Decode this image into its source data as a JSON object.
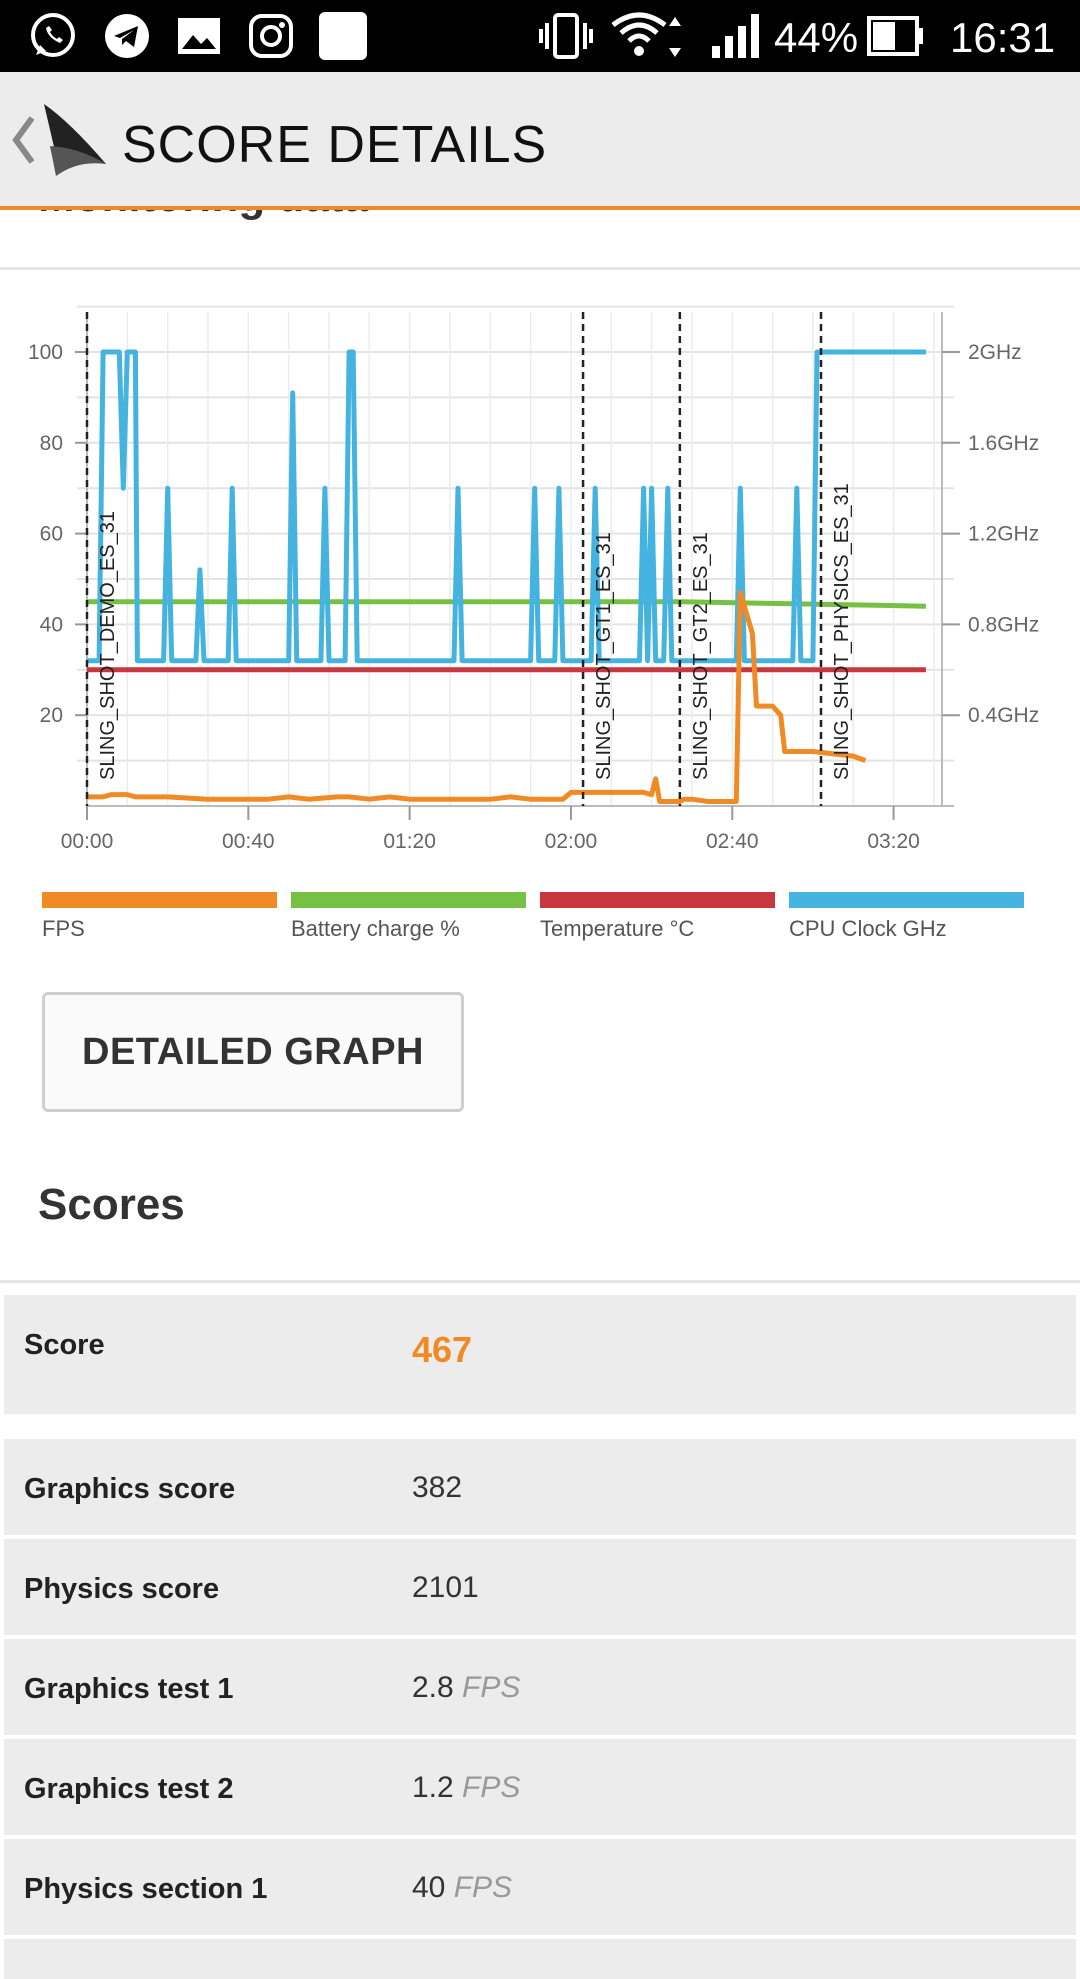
{
  "status_bar": {
    "battery_percent": "44%",
    "time": "16:31",
    "icons": [
      "whatsapp-icon",
      "telegram-icon",
      "gallery-icon",
      "instagram-icon",
      "app-icon",
      "vibrate-icon",
      "wifi-icon",
      "signal-icon",
      "battery-icon"
    ]
  },
  "app_bar": {
    "title": "SCORE DETAILS",
    "back_icon": "back-chevron-icon",
    "logo_icon": "3dmark-logo-icon"
  },
  "monitoring": {
    "header": "Monitoring data"
  },
  "chart_data": {
    "type": "line",
    "x_ticks": [
      "00:00",
      "00:40",
      "01:20",
      "02:00",
      "02:40",
      "03:20"
    ],
    "x_range_seconds": [
      0,
      212
    ],
    "y_left_ticks": [
      20,
      40,
      60,
      80,
      100
    ],
    "y_left_range": [
      0,
      100
    ],
    "y_right_ticks": [
      "0.4GHz",
      "0.8GHz",
      "1.2GHz",
      "1.6GHz",
      "2GHz"
    ],
    "y_right_range_ghz": [
      0,
      2
    ],
    "markers": [
      {
        "t": 0,
        "label": "SLING_SHOT_DEMO_ES_31"
      },
      {
        "t": 123,
        "label": "SLING_SHOT_GT1_ES_31"
      },
      {
        "t": 147,
        "label": "SLING_SHOT_GT2_ES_31"
      },
      {
        "t": 182,
        "label": "SLING_SHOT_PHYSICS_ES_31"
      }
    ],
    "series": [
      {
        "name": "FPS",
        "color": "#f08a24",
        "points": [
          [
            0,
            2
          ],
          [
            4,
            2
          ],
          [
            6,
            2.5
          ],
          [
            10,
            2.5
          ],
          [
            12,
            2
          ],
          [
            20,
            2
          ],
          [
            30,
            1.5
          ],
          [
            35,
            1.5
          ],
          [
            45,
            1.5
          ],
          [
            50,
            2
          ],
          [
            55,
            1.5
          ],
          [
            62,
            2
          ],
          [
            65,
            2
          ],
          [
            70,
            1.5
          ],
          [
            75,
            2
          ],
          [
            80,
            1.5
          ],
          [
            90,
            1.5
          ],
          [
            100,
            1.5
          ],
          [
            105,
            2
          ],
          [
            110,
            1.5
          ],
          [
            118,
            1.5
          ],
          [
            120,
            3
          ],
          [
            130,
            3
          ],
          [
            138,
            3
          ],
          [
            140,
            2.5
          ],
          [
            141,
            6
          ],
          [
            142,
            1
          ],
          [
            147,
            1
          ],
          [
            148,
            1.5
          ],
          [
            150,
            1.5
          ],
          [
            154,
            1
          ],
          [
            161,
            1
          ],
          [
            162,
            47
          ],
          [
            165,
            38
          ],
          [
            166,
            22
          ],
          [
            170,
            22
          ],
          [
            172,
            20
          ],
          [
            173,
            12
          ],
          [
            180,
            12
          ],
          [
            190,
            11
          ],
          [
            193,
            10
          ]
        ]
      },
      {
        "name": "Battery charge %",
        "color": "#76c043",
        "points": [
          [
            0,
            45
          ],
          [
            147,
            45
          ],
          [
            208,
            44
          ]
        ]
      },
      {
        "name": "Temperature °C",
        "color": "#c9373e",
        "points": [
          [
            0,
            30
          ],
          [
            208,
            30
          ]
        ]
      },
      {
        "name": "CPU Clock GHz",
        "color": "#45b3e0",
        "points_ghz": [
          [
            0,
            0.64
          ],
          [
            3,
            0.64
          ],
          [
            4,
            2.0
          ],
          [
            8,
            2.0
          ],
          [
            9,
            1.4
          ],
          [
            10,
            2.0
          ],
          [
            12,
            2.0
          ],
          [
            12.5,
            0.64
          ],
          [
            19,
            0.64
          ],
          [
            20,
            1.4
          ],
          [
            21,
            0.64
          ],
          [
            27,
            0.64
          ],
          [
            28,
            1.04
          ],
          [
            29,
            0.64
          ],
          [
            35,
            0.64
          ],
          [
            36,
            1.4
          ],
          [
            37,
            0.64
          ],
          [
            50,
            0.64
          ],
          [
            51,
            1.82
          ],
          [
            52,
            0.64
          ],
          [
            58,
            0.64
          ],
          [
            59,
            1.4
          ],
          [
            60,
            0.64
          ],
          [
            64,
            0.64
          ],
          [
            65,
            2.0
          ],
          [
            66,
            2.0
          ],
          [
            67,
            0.64
          ],
          [
            91,
            0.64
          ],
          [
            92,
            1.4
          ],
          [
            93,
            0.64
          ],
          [
            110,
            0.64
          ],
          [
            111,
            1.4
          ],
          [
            112,
            0.64
          ],
          [
            116,
            0.64
          ],
          [
            117,
            1.4
          ],
          [
            118,
            0.64
          ],
          [
            125,
            0.64
          ],
          [
            126,
            1.4
          ],
          [
            127,
            0.64
          ],
          [
            137,
            0.64
          ],
          [
            138,
            1.4
          ],
          [
            139,
            0.64
          ],
          [
            140,
            1.4
          ],
          [
            141,
            0.64
          ],
          [
            143,
            0.64
          ],
          [
            144,
            1.4
          ],
          [
            145,
            0.64
          ],
          [
            161,
            0.64
          ],
          [
            162,
            1.4
          ],
          [
            163,
            0.64
          ],
          [
            175,
            0.64
          ],
          [
            176,
            1.4
          ],
          [
            177,
            0.64
          ],
          [
            180,
            0.64
          ],
          [
            181,
            2.0
          ],
          [
            208,
            2.0
          ]
        ]
      }
    ]
  },
  "legend": [
    {
      "label": "FPS",
      "color": "#f08a24"
    },
    {
      "label": "Battery charge %",
      "color": "#76c043"
    },
    {
      "label": "Temperature °C",
      "color": "#c9373e"
    },
    {
      "label": "CPU Clock GHz",
      "color": "#45b3e0"
    }
  ],
  "detailed_graph_button": "DETAILED GRAPH",
  "scores": {
    "title": "Scores",
    "rows": [
      {
        "label": "Score",
        "value": "467",
        "unit": ""
      },
      {
        "label": "Graphics score",
        "value": "382",
        "unit": ""
      },
      {
        "label": "Physics score",
        "value": "2101",
        "unit": ""
      },
      {
        "label": "Graphics test 1",
        "value": "2.8",
        "unit": "FPS"
      },
      {
        "label": "Graphics test 2",
        "value": "1.2",
        "unit": "FPS"
      },
      {
        "label": "Physics section 1",
        "value": "40",
        "unit": "FPS"
      }
    ]
  }
}
